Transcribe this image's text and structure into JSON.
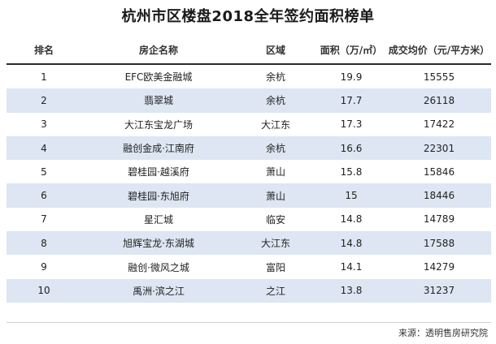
{
  "title": "杭州市区楼盘2018全年签约面积榜单",
  "table": {
    "headers": {
      "rank": "排名",
      "name": "房企名称",
      "region": "区域",
      "area": "面积（万/㎡）",
      "price": "成交均价（元/平方米）"
    },
    "rows": [
      {
        "rank": "1",
        "name": "EFC欧美金融城",
        "region": "余杭",
        "area": "19.9",
        "price": "15555"
      },
      {
        "rank": "2",
        "name": "翡翠城",
        "region": "余杭",
        "area": "17.7",
        "price": "26118"
      },
      {
        "rank": "3",
        "name": "大江东宝龙广场",
        "region": "大江东",
        "area": "17.3",
        "price": "17422"
      },
      {
        "rank": "4",
        "name": "融创金成·江南府",
        "region": "余杭",
        "area": "16.6",
        "price": "22301"
      },
      {
        "rank": "5",
        "name": "碧桂园·越溪府",
        "region": "萧山",
        "area": "15.8",
        "price": "15846"
      },
      {
        "rank": "6",
        "name": "碧桂园·东旭府",
        "region": "萧山",
        "area": "15",
        "price": "18446"
      },
      {
        "rank": "7",
        "name": "星汇城",
        "region": "临安",
        "area": "14.8",
        "price": "14789"
      },
      {
        "rank": "8",
        "name": "旭辉宝龙·东湖城",
        "region": "大江东",
        "area": "14.8",
        "price": "17588"
      },
      {
        "rank": "9",
        "name": "融创·微风之城",
        "region": "富阳",
        "area": "14.1",
        "price": "14279"
      },
      {
        "rank": "10",
        "name": "禹洲·滨之江",
        "region": "之江",
        "area": "13.8",
        "price": "31237"
      }
    ]
  },
  "source": "来源：透明售房研究院",
  "colors": {
    "alt_row": "#dde6f2",
    "header_rule": "#2b2b2b"
  }
}
